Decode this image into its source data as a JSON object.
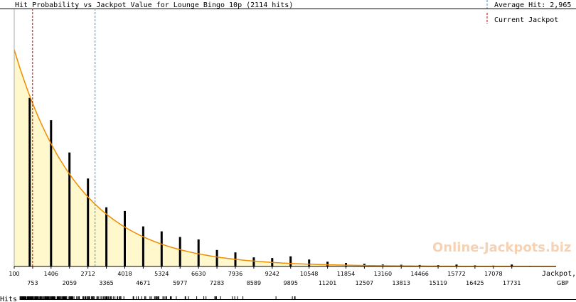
{
  "chart_data": {
    "type": "bar",
    "title": "Hit Probability vs Jackpot Value for Lounge Bingo 10p (2114 hits)",
    "legend": {
      "average_label": "Average Hit: 2,965",
      "current_label": "Current Jackpot",
      "position": "top-right"
    },
    "xlabel_line1": "Jackpot,",
    "xlabel_line2": "GBP",
    "rug_label": "Hits",
    "watermark": "Online-Jackpots.biz",
    "xlim": [
      100,
      19300
    ],
    "average_hit": 2965,
    "current_jackpot": 750,
    "tick_labels_upper": [
      "100",
      "1406",
      "2712",
      "4018",
      "5324",
      "6630",
      "7936",
      "9242",
      "10548",
      "11854",
      "13160",
      "14466",
      "15772",
      "17078"
    ],
    "tick_labels_lower": [
      "753",
      "2059",
      "3365",
      "4671",
      "5977",
      "7283",
      "8589",
      "9895",
      "11201",
      "12507",
      "13813",
      "15119",
      "16425",
      "17731"
    ],
    "bars": {
      "x": [
        650,
        1406,
        2059,
        2712,
        3365,
        4018,
        4671,
        5324,
        5977,
        6630,
        7283,
        7936,
        8589,
        9242,
        9895,
        10548,
        11201,
        11854,
        12507,
        13160,
        13813,
        14466,
        15119,
        15772,
        16425,
        17078,
        17731,
        18384
      ],
      "relative_height": [
        0.778,
        0.675,
        0.526,
        0.406,
        0.273,
        0.256,
        0.185,
        0.162,
        0.136,
        0.125,
        0.076,
        0.065,
        0.042,
        0.039,
        0.047,
        0.032,
        0.022,
        0.016,
        0.012,
        0.009,
        0.008,
        0.007,
        0.006,
        0.009,
        0.005,
        0.004,
        0.009,
        0.003
      ]
    },
    "curve": {
      "decay": 0.000435,
      "peak_relative_height": 1.0
    },
    "colors": {
      "fill": "#fff8cc",
      "curve": "#f08c00",
      "bars": "#000000",
      "average_line": "#3399cc",
      "current_line": "#cc0000"
    }
  }
}
